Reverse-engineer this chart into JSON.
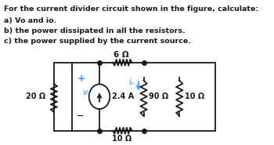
{
  "title_lines": [
    "For the current divider circuit shown in the figure, calculate:",
    "a) Vo and io.",
    "b) the power dissipated in all the resistors.",
    "c) the power supplied by the current source."
  ],
  "bg_color": "#ffffff",
  "text_color": "#2a2a2a",
  "blue_color": "#3399ff",
  "black_color": "#1a1a1a",
  "r20_label": "20 Ω",
  "r6_label": "6 Ω",
  "r10_label": "10 Ω",
  "r90_label": "90 Ω",
  "r10b_label": "10 Ω",
  "vo_label": "vₒ",
  "is_label": "2.4 A",
  "io_label": "iₒ",
  "plus_label": "+",
  "minus_label": "−"
}
